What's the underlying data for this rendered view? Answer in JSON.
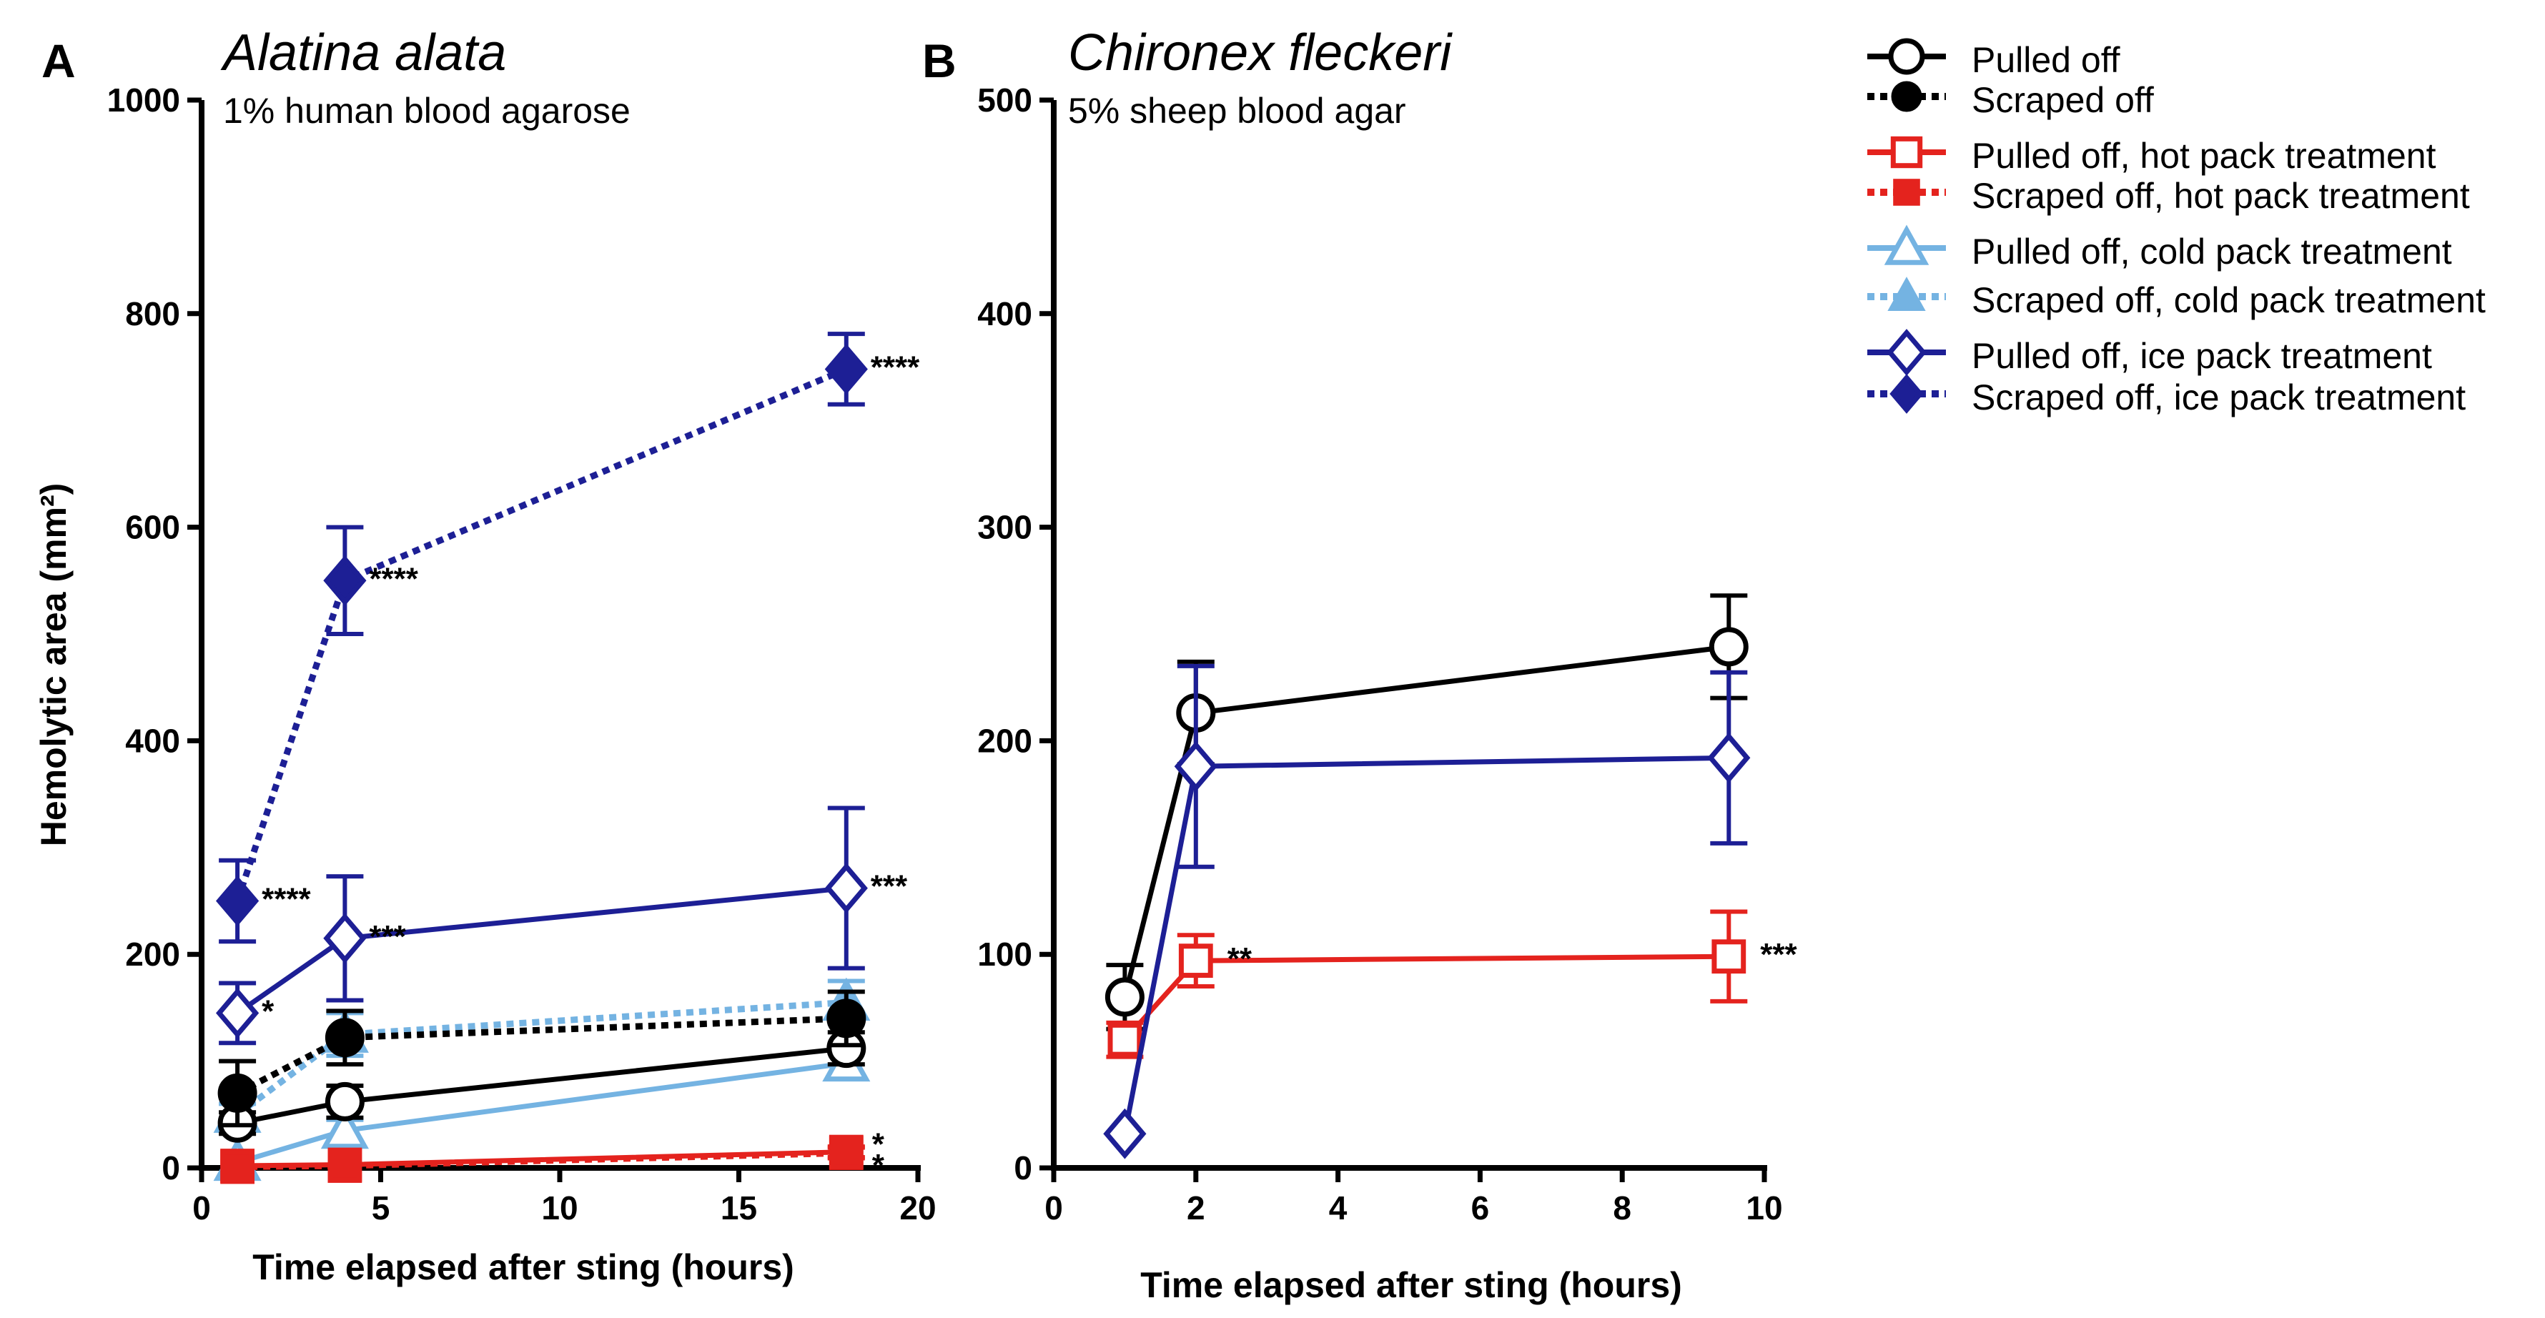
{
  "colors": {
    "black": "#000000",
    "red": "#e4231e",
    "lightblue": "#74b3e2",
    "darkblue": "#1d1f95"
  },
  "legend": [
    {
      "label": "Pulled off",
      "color": "#000000",
      "style": "solid",
      "marker": "circle",
      "filled": false
    },
    {
      "label": "Scraped off",
      "color": "#000000",
      "style": "dotted",
      "marker": "circle",
      "filled": true
    },
    {
      "label": "Pulled off, hot pack treatment",
      "color": "#e4231e",
      "style": "solid",
      "marker": "square",
      "filled": false
    },
    {
      "label": "Scraped off, hot pack treatment",
      "color": "#e4231e",
      "style": "dotted",
      "marker": "square",
      "filled": true
    },
    {
      "label": "Pulled off, cold pack treatment",
      "color": "#74b3e2",
      "style": "solid",
      "marker": "triangle",
      "filled": false
    },
    {
      "label": "Scraped off, cold pack treatment",
      "color": "#74b3e2",
      "style": "dotted",
      "marker": "triangle",
      "filled": true
    },
    {
      "label": "Pulled off, ice pack treatment",
      "color": "#1d1f95",
      "style": "solid",
      "marker": "diamond",
      "filled": false
    },
    {
      "label": "Scraped off, ice pack treatment",
      "color": "#1d1f95",
      "style": "dotted",
      "marker": "diamond",
      "filled": true
    }
  ],
  "chart_data": [
    {
      "type": "line",
      "panel_label": "A",
      "title": "Alatina alata",
      "subtitle": "1% human blood agarose",
      "xlabel": "Time elapsed after sting (hours)",
      "ylabel": "Hemolytic area (mm²)",
      "xlim": [
        0,
        20
      ],
      "ylim": [
        0,
        1000
      ],
      "xticks": [
        0,
        5,
        10,
        15,
        20
      ],
      "yticks": [
        0,
        200,
        400,
        600,
        800,
        1000
      ],
      "series": [
        {
          "name": "Pulled off, cold pack treatment",
          "color": "#74b3e2",
          "style": "solid",
          "marker": "triangle",
          "filled": false,
          "x": [
            1,
            4,
            18
          ],
          "y": [
            5,
            35,
            98
          ],
          "err": [
            0,
            10,
            10
          ],
          "labels": [
            "",
            "",
            ""
          ]
        },
        {
          "name": "Scraped off, cold pack treatment",
          "color": "#74b3e2",
          "style": "dotted",
          "marker": "triangle",
          "filled": true,
          "x": [
            1,
            4,
            18
          ],
          "y": [
            50,
            125,
            155
          ],
          "err": [
            10,
            20,
            20
          ],
          "labels": [
            "",
            "",
            ""
          ]
        },
        {
          "name": "Pulled off",
          "color": "#000000",
          "style": "solid",
          "marker": "circle",
          "filled": false,
          "x": [
            1,
            4,
            18
          ],
          "y": [
            42,
            62,
            112
          ],
          "err": [
            10,
            15,
            15
          ],
          "labels": [
            "",
            "",
            ""
          ]
        },
        {
          "name": "Scraped off",
          "color": "#000000",
          "style": "dotted",
          "marker": "circle",
          "filled": true,
          "x": [
            1,
            4,
            18
          ],
          "y": [
            70,
            122,
            140
          ],
          "err": [
            30,
            25,
            25
          ],
          "labels": [
            "",
            "",
            ""
          ]
        },
        {
          "name": "Pulled off, hot pack treatment",
          "color": "#e4231e",
          "style": "solid",
          "marker": "square",
          "filled": false,
          "x": [
            1,
            4,
            18
          ],
          "y": [
            2,
            3,
            15
          ],
          "err": [
            0,
            0,
            5
          ],
          "labels": [
            "",
            "",
            "*"
          ]
        },
        {
          "name": "Scraped off, hot pack treatment",
          "color": "#e4231e",
          "style": "dotted",
          "marker": "square",
          "filled": true,
          "x": [
            1,
            4,
            18
          ],
          "y": [
            1,
            2,
            14
          ],
          "err": [
            0,
            0,
            5
          ],
          "labels": [
            "",
            "",
            "*"
          ]
        },
        {
          "name": "Pulled off, ice pack treatment",
          "color": "#1d1f95",
          "style": "solid",
          "marker": "diamond",
          "filled": false,
          "x": [
            1,
            4,
            18
          ],
          "y": [
            145,
            215,
            262
          ],
          "err": [
            28,
            58,
            75
          ],
          "labels": [
            "*",
            "***",
            "***"
          ]
        },
        {
          "name": "Scraped off, ice pack treatment",
          "color": "#1d1f95",
          "style": "dotted",
          "marker": "diamond",
          "filled": true,
          "x": [
            1,
            4,
            18
          ],
          "y": [
            250,
            550,
            748
          ],
          "err": [
            38,
            50,
            33
          ],
          "labels": [
            "****",
            "****",
            "****"
          ]
        }
      ]
    },
    {
      "type": "line",
      "panel_label": "B",
      "title": "Chironex fleckeri",
      "subtitle": "5% sheep blood agar",
      "xlabel": "Time elapsed after sting (hours)",
      "ylabel": "",
      "xlim": [
        0,
        10
      ],
      "ylim": [
        0,
        500
      ],
      "xticks": [
        0,
        2,
        4,
        6,
        8,
        10
      ],
      "yticks": [
        0,
        100,
        200,
        300,
        400,
        500
      ],
      "series": [
        {
          "name": "Pulled off",
          "color": "#000000",
          "style": "solid",
          "marker": "circle",
          "filled": false,
          "x": [
            1,
            2,
            9.5
          ],
          "y": [
            80,
            213,
            244
          ],
          "err": [
            15,
            24,
            24
          ],
          "labels": [
            "",
            "",
            ""
          ]
        },
        {
          "name": "Pulled off, hot pack treatment",
          "color": "#e4231e",
          "style": "solid",
          "marker": "square",
          "filled": false,
          "x": [
            1,
            2,
            9.5
          ],
          "y": [
            60,
            97,
            99
          ],
          "err": [
            8,
            12,
            21
          ],
          "labels": [
            "",
            "**",
            "***"
          ]
        },
        {
          "name": "Pulled off, ice pack treatment",
          "color": "#1d1f95",
          "style": "solid",
          "marker": "diamond",
          "filled": false,
          "x": [
            1,
            2,
            9.5
          ],
          "y": [
            16,
            188,
            192
          ],
          "err": [
            0,
            47,
            40
          ],
          "labels": [
            "",
            "",
            ""
          ]
        }
      ]
    }
  ]
}
